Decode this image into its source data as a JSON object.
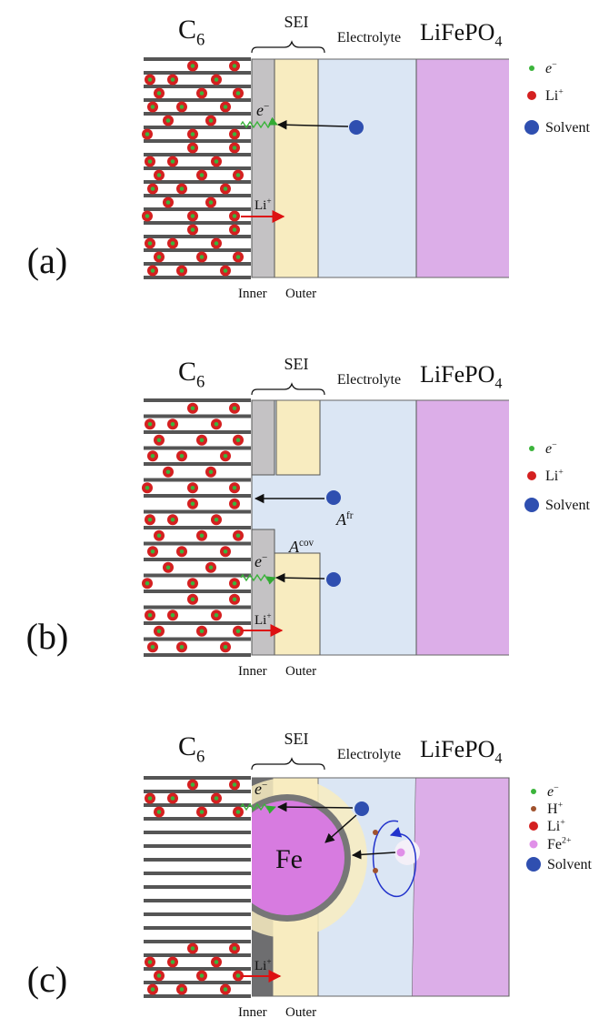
{
  "panels": [
    {
      "label": "(a)",
      "anode": {
        "base": "C",
        "sub": "6"
      },
      "sei": "SEI",
      "electrolyte": "Electrolyte",
      "cathode": {
        "base": "LiFePO",
        "sub": "4"
      },
      "inner": "Inner",
      "outer": "Outer",
      "annotations": [
        {
          "base": "e",
          "sup": "−"
        },
        {
          "base": "Li",
          "sup": "+"
        }
      ],
      "legend": [
        {
          "base": "e",
          "sup": "−"
        },
        {
          "base": "Li",
          "sup": "+"
        },
        {
          "base": "Solvent"
        }
      ]
    },
    {
      "label": "(b)",
      "anode": {
        "base": "C",
        "sub": "6"
      },
      "sei": "SEI",
      "electrolyte": "Electrolyte",
      "cathode": {
        "base": "LiFePO",
        "sub": "4"
      },
      "inner": "Inner",
      "outer": "Outer",
      "annotations": [
        {
          "base": "e",
          "sup": "−"
        },
        {
          "base": "Li",
          "sup": "+"
        },
        {
          "base": "A",
          "sup": "fr"
        },
        {
          "base": "A",
          "sup": "cov"
        }
      ],
      "legend": [
        {
          "base": "e",
          "sup": "−"
        },
        {
          "base": "Li",
          "sup": "+"
        },
        {
          "base": "Solvent"
        }
      ]
    },
    {
      "label": "(c)",
      "anode": {
        "base": "C",
        "sub": "6"
      },
      "sei": "SEI",
      "electrolyte": "Electrolyte",
      "cathode": {
        "base": "LiFePO",
        "sub": "4"
      },
      "inner": "Inner",
      "outer": "Outer",
      "annotations": [
        {
          "base": "e",
          "sup": "−"
        },
        {
          "base": "Li",
          "sup": "+"
        },
        {
          "base": "Fe"
        }
      ],
      "legend": [
        {
          "base": "e",
          "sup": "−"
        },
        {
          "base": "H",
          "sup": "+"
        },
        {
          "base": "Li",
          "sup": "+"
        },
        {
          "base": "Fe",
          "sup": "2+"
        },
        {
          "base": "Solvent"
        }
      ]
    }
  ]
}
